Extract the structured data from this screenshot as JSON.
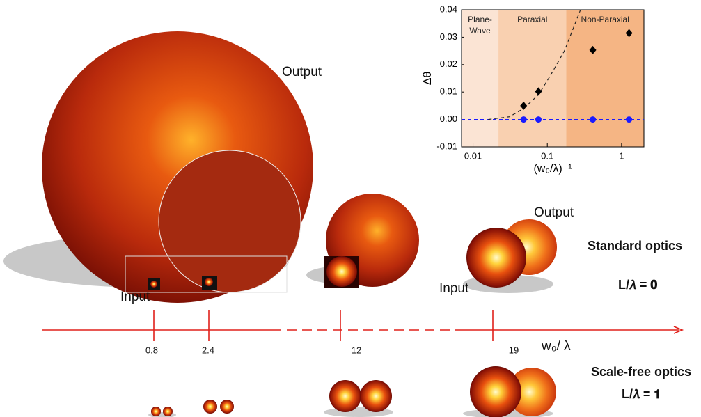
{
  "chart_data": {
    "type": "scatter",
    "x_label": "(w₀/λ)⁻¹",
    "y_label": "Δθ",
    "log_x": true,
    "xlim": [
      0.007,
      2
    ],
    "xticks": [
      0.01,
      0.1,
      1
    ],
    "ylim": [
      -0.01,
      0.04
    ],
    "yticks": [
      -0.01,
      {
        "value": 0,
        "label": "0.00"
      },
      0.01,
      0.02,
      0.03,
      0.04
    ],
    "regions": [
      {
        "label": [
          "Plane-",
          "Wave"
        ],
        "from": 0.007,
        "to": 0.022,
        "color": "#fbe4d4"
      },
      {
        "label": [
          "Paraxial"
        ],
        "from": 0.022,
        "to": 0.18,
        "color": "#f9d0b0"
      },
      {
        "label": [
          "Non-Paraxial"
        ],
        "from": 0.18,
        "to": 2,
        "color": "#f5b584"
      }
    ],
    "hline": {
      "value": 0,
      "color": "#1a1aff"
    },
    "series": [
      {
        "marker": "diamond",
        "color": "#000000",
        "x": [
          0.048,
          0.076,
          0.41,
          1.26
        ],
        "values": [
          0.005,
          0.0102,
          0.0253,
          0.0315
        ]
      },
      {
        "marker": "circle",
        "color": "#1a1aff",
        "x": [
          0.048,
          0.076,
          0.41,
          1.26
        ],
        "values": [
          0,
          0,
          0,
          0
        ]
      },
      {
        "marker": "dashed-line",
        "color": "#222222",
        "x": [
          0.016,
          0.031,
          0.048,
          0.076,
          0.11,
          0.17,
          0.28
        ],
        "values": [
          0,
          0.001,
          0.004,
          0.009,
          0.016,
          0.025,
          0.04
        ]
      }
    ]
  },
  "figure": {
    "big_output": "Output",
    "big_input": "Input",
    "right_output": "Output",
    "right_input": "Input",
    "axis_ticks": [
      "0.8",
      "2.4",
      "12",
      "19"
    ],
    "axis_label": "w₀/ λ",
    "standard": "Standard optics",
    "standard_eq": "L/𝜆 = 𝟎",
    "scalefree": "Scale-free optics",
    "scalefree_eq": "L/𝜆 = 𝟏"
  }
}
